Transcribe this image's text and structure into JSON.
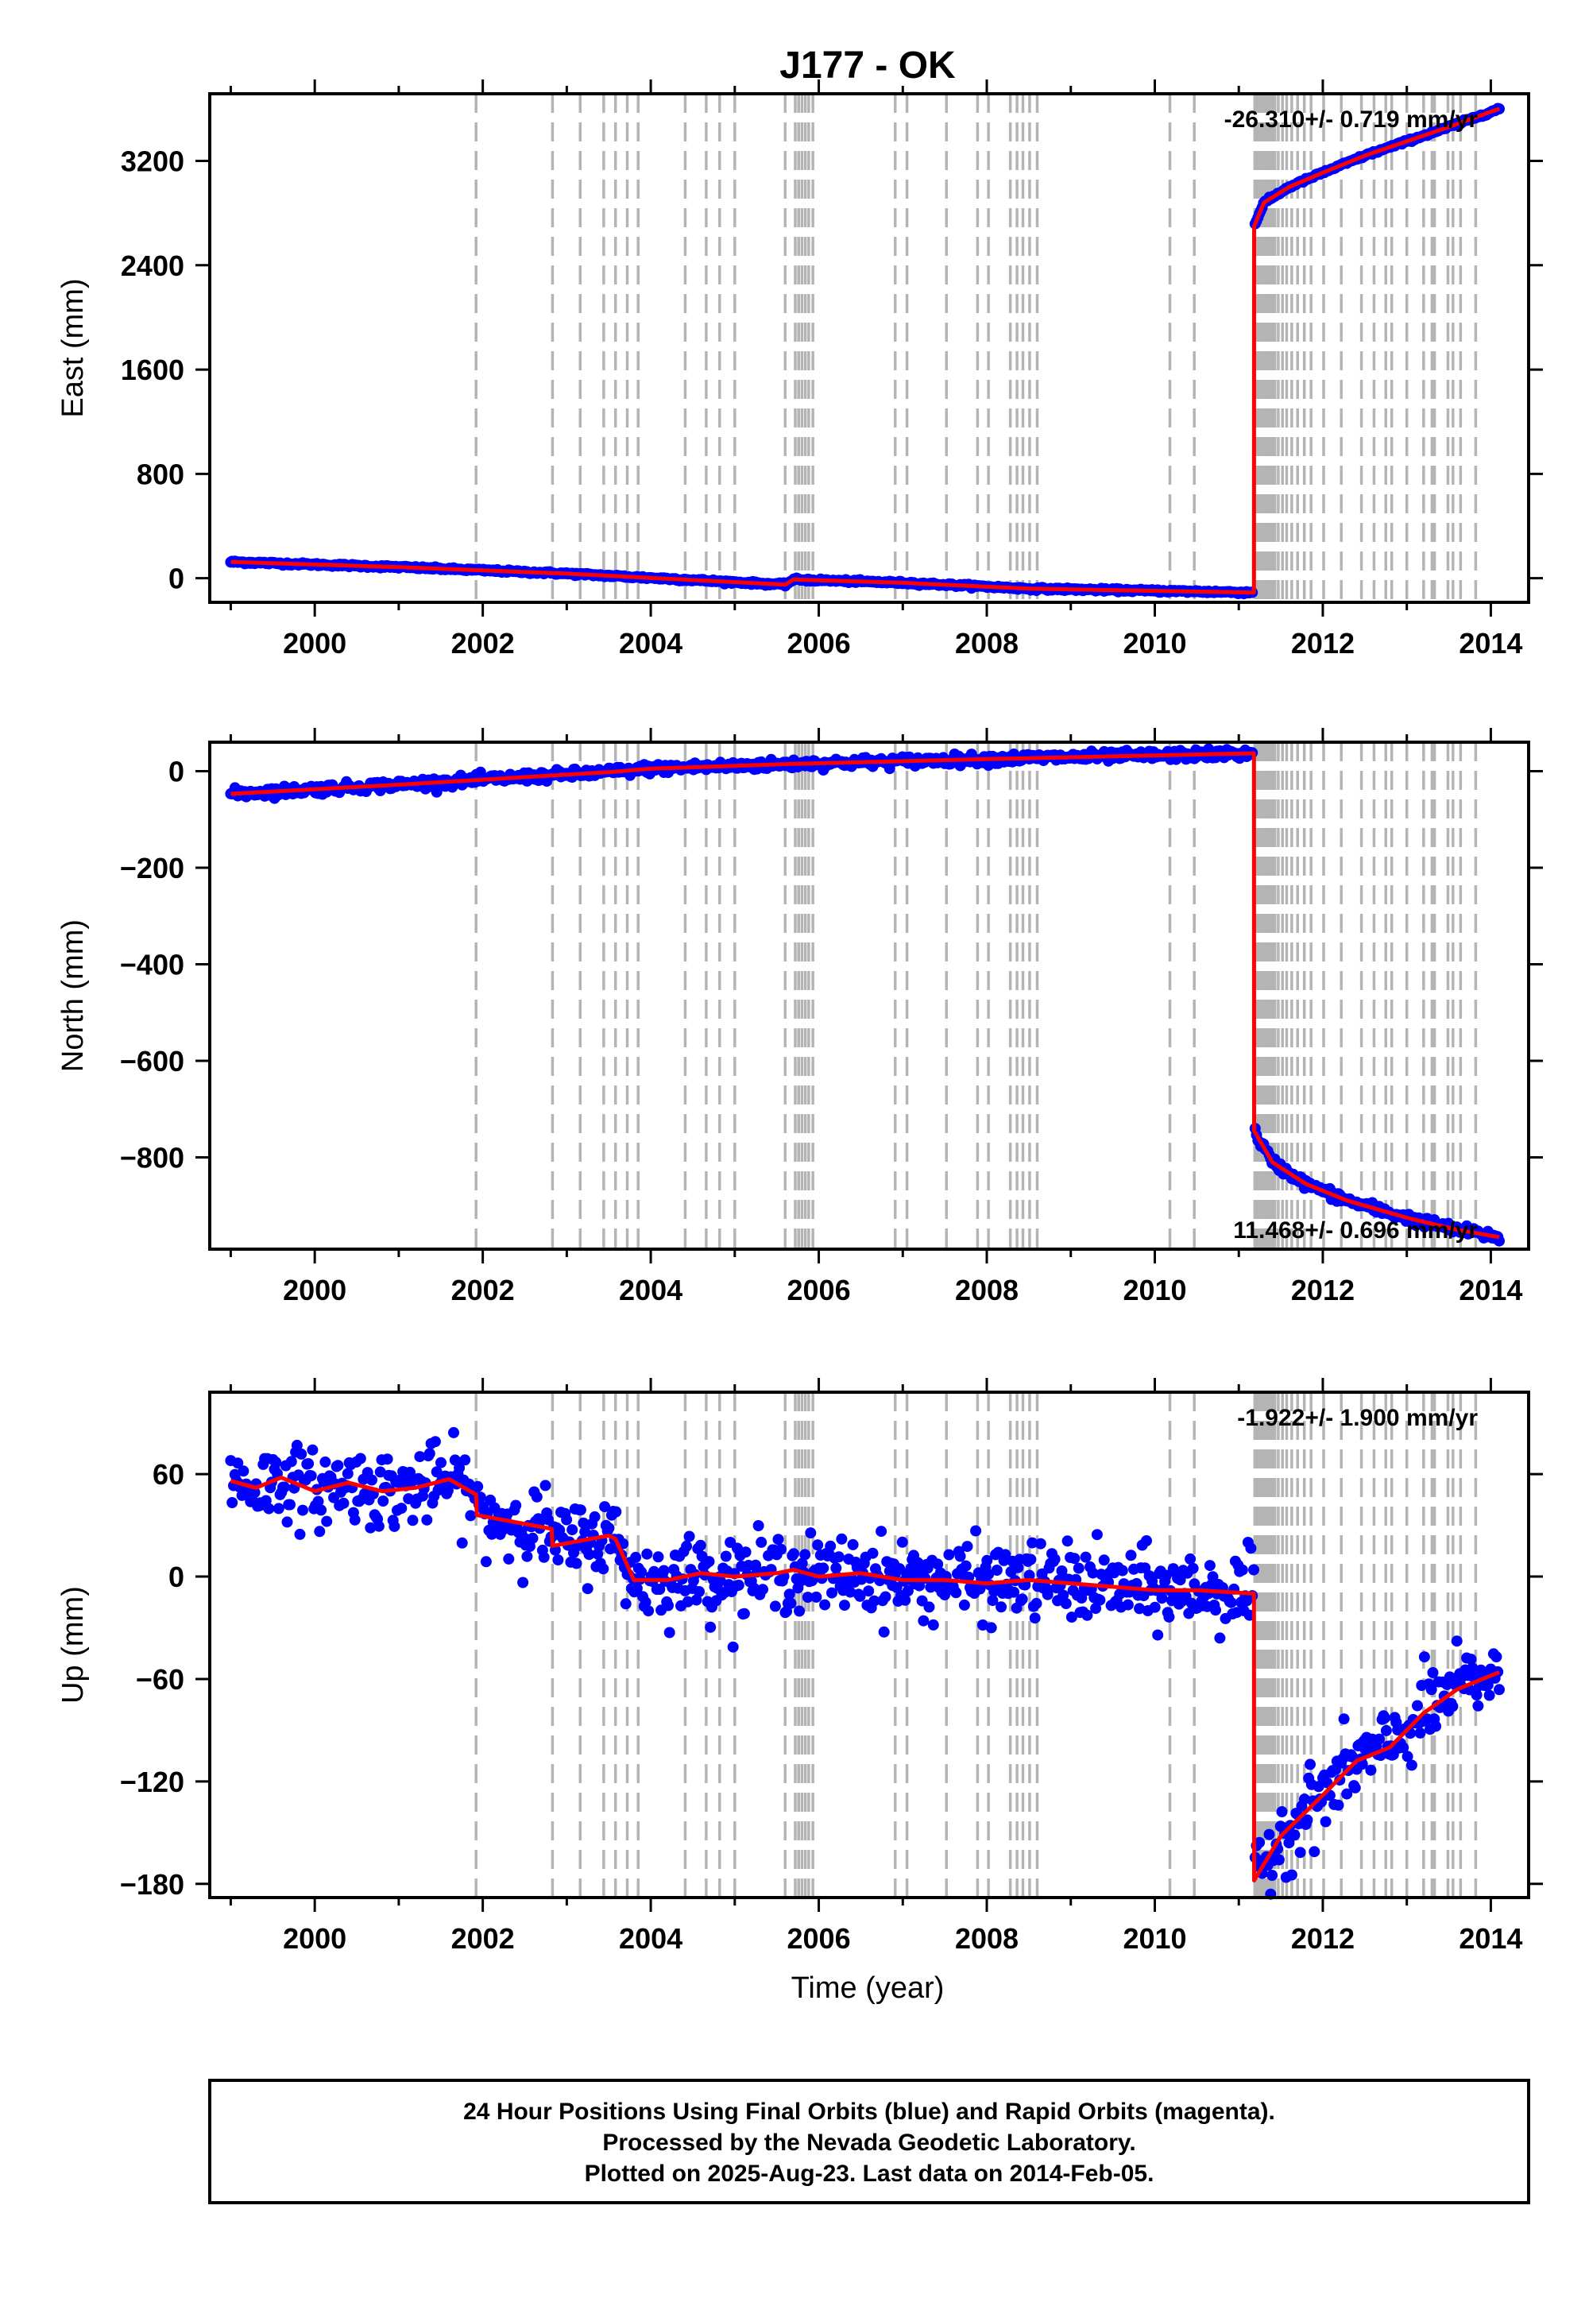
{
  "chart_data": {
    "type": "scatter",
    "title": "J177 - OK",
    "x_range": [
      1998.75,
      2014.45
    ],
    "x_ticks": [
      2000,
      2002,
      2004,
      2006,
      2008,
      2010,
      2012,
      2014
    ],
    "x_tick_labels": [
      "2000",
      "2002",
      "2004",
      "2006",
      "2008",
      "2010",
      "2012",
      "2014"
    ],
    "xlabel": "Time (year)",
    "data_end": 2014.1,
    "offset_epochs": [
      2001.92,
      2002.83,
      2003.16,
      2003.44,
      2003.58,
      2003.72,
      2003.85,
      2004.41,
      2004.66,
      2004.82,
      2005.0,
      2005.6,
      2005.72,
      2005.76,
      2005.8,
      2005.84,
      2005.88,
      2005.93,
      2006.91,
      2007.05,
      2007.52,
      2007.89,
      2008.02,
      2008.28,
      2008.36,
      2008.43,
      2008.51,
      2008.6,
      2010.18,
      2010.47,
      2011.19,
      2011.22,
      2011.25,
      2011.28,
      2011.31,
      2011.34,
      2011.37,
      2011.4,
      2011.43,
      2011.47,
      2011.52,
      2011.57,
      2011.63,
      2011.7,
      2011.78,
      2011.86,
      2012.01,
      2012.22,
      2012.46,
      2012.61,
      2012.75,
      2012.82,
      2013.0,
      2013.2,
      2013.3,
      2013.33,
      2013.49,
      2013.55,
      2013.64,
      2013.82
    ],
    "panels": [
      {
        "name": "east",
        "ylabel": "East (mm)",
        "ylim": [
          -185,
          3715
        ],
        "yticks": [
          0,
          800,
          1600,
          2400,
          3200
        ],
        "ytick_labels": [
          "0",
          "800",
          "1600",
          "2400",
          "3200"
        ],
        "rate_label": "-26.310+/- 0.719 mm/yr",
        "rate_position": "top-right",
        "model": [
          [
            1999.0,
            125
          ],
          [
            2001.0,
            85
          ],
          [
            2003.0,
            35
          ],
          [
            2005.6,
            -50
          ],
          [
            2005.7,
            -10
          ],
          [
            2007.0,
            -35
          ],
          [
            2008.5,
            -80
          ],
          [
            2011.18,
            -110
          ],
          [
            2011.182,
            2700
          ],
          [
            2011.3,
            2880
          ],
          [
            2011.6,
            3000
          ],
          [
            2012.0,
            3110
          ],
          [
            2012.5,
            3240
          ],
          [
            2013.0,
            3350
          ],
          [
            2013.5,
            3460
          ],
          [
            2014.1,
            3600
          ]
        ],
        "scatter": 5
      },
      {
        "name": "north",
        "ylabel": "North (mm)",
        "ylim": [
          -990,
          60
        ],
        "yticks": [
          0,
          -200,
          -400,
          -600,
          -800
        ],
        "ytick_labels": [
          "0",
          "−200",
          "−400",
          "−600",
          "−800"
        ],
        "rate_label": "11.468+/- 0.696 mm/yr",
        "rate_position": "bottom-right",
        "model": [
          [
            1999.0,
            -47
          ],
          [
            2001.0,
            -28
          ],
          [
            2003.5,
            -2
          ],
          [
            2004.0,
            5
          ],
          [
            2005.7,
            15
          ],
          [
            2008.0,
            25
          ],
          [
            2011.18,
            37
          ],
          [
            2011.182,
            -745
          ],
          [
            2011.4,
            -810
          ],
          [
            2011.8,
            -855
          ],
          [
            2012.3,
            -890
          ],
          [
            2013.0,
            -925
          ],
          [
            2013.6,
            -950
          ],
          [
            2014.1,
            -965
          ]
        ],
        "scatter": 5
      },
      {
        "name": "up",
        "ylabel": "Up (mm)",
        "ylim": [
          -188,
          108
        ],
        "yticks": [
          60,
          0,
          -60,
          -120,
          -180
        ],
        "ytick_labels": [
          "60",
          "0",
          "−60",
          "−120",
          "−180"
        ],
        "rate_label": "-1.922+/- 1.900 mm/yr",
        "rate_position": "top-right",
        "model": [
          [
            1999.0,
            56
          ],
          [
            1999.3,
            52
          ],
          [
            1999.6,
            58
          ],
          [
            2000.0,
            50
          ],
          [
            2000.4,
            55
          ],
          [
            2000.8,
            50
          ],
          [
            2001.2,
            52
          ],
          [
            2001.6,
            57
          ],
          [
            2001.92,
            48
          ],
          [
            2001.93,
            36
          ],
          [
            2002.82,
            28
          ],
          [
            2002.83,
            18
          ],
          [
            2003.5,
            24
          ],
          [
            2003.58,
            22
          ],
          [
            2003.8,
            -2
          ],
          [
            2004.2,
            -2
          ],
          [
            2004.6,
            2
          ],
          [
            2005.0,
            0
          ],
          [
            2005.5,
            2
          ],
          [
            2005.7,
            4
          ],
          [
            2006.0,
            0
          ],
          [
            2006.5,
            2
          ],
          [
            2007.0,
            -2
          ],
          [
            2007.5,
            -2
          ],
          [
            2008.0,
            -4
          ],
          [
            2008.5,
            -2
          ],
          [
            2009.0,
            -4
          ],
          [
            2009.5,
            -6
          ],
          [
            2010.0,
            -8
          ],
          [
            2010.5,
            -8
          ],
          [
            2011.18,
            -10
          ],
          [
            2011.182,
            -178
          ],
          [
            2011.5,
            -152
          ],
          [
            2012.0,
            -128
          ],
          [
            2012.4,
            -108
          ],
          [
            2012.8,
            -100
          ],
          [
            2013.2,
            -80
          ],
          [
            2013.6,
            -66
          ],
          [
            2014.1,
            -56
          ]
        ],
        "scatter": 11
      }
    ]
  },
  "footer": {
    "line1": "24 Hour Positions Using Final Orbits (blue) and Rapid Orbits (magenta).",
    "line2": "Processed by the Nevada Geodetic Laboratory.",
    "line3": "Plotted on 2025-Aug-23. Last data on 2014-Feb-05."
  },
  "colors": {
    "points": "#0000ff",
    "model": "#ff0000",
    "offsets": "#b4b4b4",
    "frame": "#000000"
  }
}
